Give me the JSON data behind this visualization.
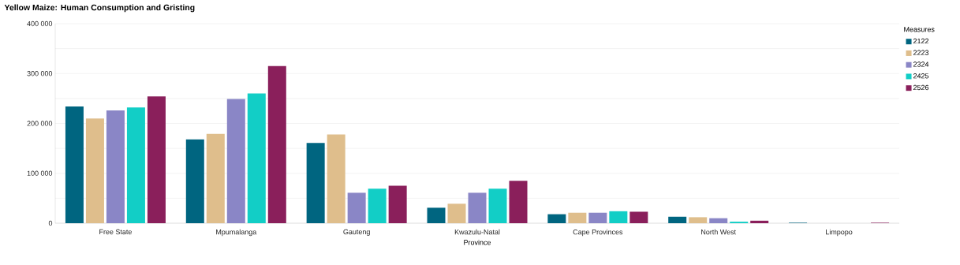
{
  "chart_data": {
    "type": "bar",
    "title": "Yellow Maize: Human Consumption and Gristing",
    "xlabel": "Province",
    "legend_title": "Measures",
    "categories": [
      "Free State",
      "Mpumalanga",
      "Gauteng",
      "Kwazulu-Natal",
      "Cape Provinces",
      "North West",
      "Limpopo"
    ],
    "series": [
      {
        "name": "2122",
        "color": "#006580",
        "values": [
          234000,
          168000,
          161000,
          31000,
          18000,
          13000,
          1000
        ]
      },
      {
        "name": "2223",
        "color": "#dfbe8c",
        "values": [
          210000,
          179000,
          178000,
          39000,
          21000,
          12000,
          0
        ]
      },
      {
        "name": "2324",
        "color": "#8a86c6",
        "values": [
          226000,
          249000,
          61000,
          61000,
          21000,
          10000,
          0
        ]
      },
      {
        "name": "2425",
        "color": "#12cec6",
        "values": [
          232000,
          260000,
          69000,
          69000,
          24000,
          3000,
          0
        ]
      },
      {
        "name": "2526",
        "color": "#8a1f5b",
        "values": [
          254000,
          315000,
          75000,
          85000,
          23000,
          5000,
          1000
        ]
      }
    ],
    "ylim": [
      0,
      400000
    ],
    "yticks": [
      {
        "value": 0,
        "label": "0"
      },
      {
        "value": 50000,
        "label": null
      },
      {
        "value": 100000,
        "label": "100 000"
      },
      {
        "value": 150000,
        "label": null
      },
      {
        "value": 200000,
        "label": "200 000"
      },
      {
        "value": 250000,
        "label": null
      },
      {
        "value": 300000,
        "label": "300 000"
      },
      {
        "value": 350000,
        "label": null
      },
      {
        "value": 400000,
        "label": "400 000"
      }
    ],
    "grid": "y",
    "legend": "right"
  }
}
